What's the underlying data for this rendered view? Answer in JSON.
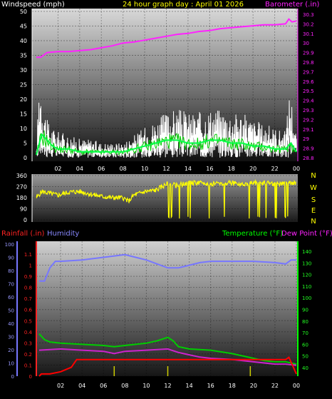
{
  "wind_panel": {
    "title_left": "Windspeed (mph)",
    "title_center": "24 hour graph day : April 01 2026",
    "title_right": "Barometer (.in)",
    "left_ticks": [
      "0",
      "5",
      "10",
      "15",
      "20",
      "25",
      "30",
      "35",
      "40",
      "45",
      "50"
    ],
    "right_ticks": [
      "28.8",
      "28.9",
      "29",
      "29.1",
      "29.2",
      "29.3",
      "29.4",
      "29.5",
      "29.6",
      "29.7",
      "29.8",
      "29.9",
      "30",
      "30.1",
      "30.2",
      "30.3"
    ],
    "x_ticks": [
      "02",
      "04",
      "06",
      "08",
      "10",
      "12",
      "14",
      "16",
      "18",
      "20",
      "22",
      "00"
    ]
  },
  "dir_panel": {
    "left_ticks": [
      "0",
      "90",
      "180",
      "270",
      "360"
    ],
    "compass": [
      "N",
      "W",
      "S",
      "E",
      "N"
    ]
  },
  "temp_panel": {
    "title_rain": "Rainfall (.in)",
    "title_humidity": "Humidity",
    "title_temp": "Temperature (°F)",
    "title_dew": "Dew Point (°F)",
    "humidity_ticks": [
      "0",
      "10",
      "20",
      "30",
      "40",
      "50",
      "60",
      "70",
      "80",
      "90",
      "100"
    ],
    "rain_ticks": [
      "0",
      "0.1",
      "0.2",
      "0.3",
      "0.4",
      "0.5",
      "0.6",
      "0.7",
      "0.8",
      "0.9",
      "1",
      "1.1"
    ],
    "temp_ticks": [
      "40",
      "50",
      "60",
      "70",
      "80",
      "90",
      "100",
      "110",
      "120",
      "130",
      "140"
    ],
    "x_ticks": [
      "02",
      "04",
      "06",
      "08",
      "10",
      "12",
      "14",
      "16",
      "18",
      "20",
      "22",
      "00"
    ]
  },
  "colors": {
    "wind_avg": "#00cc00",
    "wind_gust": "#ffffff",
    "barometer": "#ff22ff",
    "direction": "#ffff00",
    "rain": "#ff0000",
    "humidity": "#7777ff",
    "temperature": "#00cc00",
    "dewpoint": "#cc22cc"
  },
  "chart_data": [
    {
      "type": "line",
      "x_label_positions_hours": [
        2,
        4,
        6,
        8,
        10,
        12,
        14,
        16,
        18,
        20,
        22,
        24
      ],
      "ylim_left": [
        0,
        50
      ],
      "ylim_right": [
        28.8,
        30.3
      ],
      "series": [
        {
          "name": "Windspeed",
          "axis": "left",
          "x": [
            0,
            0.5,
            1,
            1.5,
            2,
            3,
            4,
            5,
            6,
            7,
            8,
            9,
            10,
            11,
            12,
            13,
            14,
            15,
            16,
            17,
            18,
            19,
            20,
            21,
            22,
            23,
            23.5,
            24
          ],
          "values": [
            1,
            8,
            6,
            4,
            3,
            3,
            2,
            2,
            2,
            2,
            2,
            3,
            4,
            5,
            6,
            6,
            5,
            5,
            6,
            6,
            5,
            5,
            4,
            4,
            3,
            3,
            5,
            2
          ]
        },
        {
          "name": "Gust",
          "axis": "left",
          "x": [
            0,
            0.3,
            0.6,
            1,
            1.5,
            2,
            3,
            4,
            5,
            6,
            7,
            8,
            9,
            10,
            11,
            12,
            13,
            14,
            15,
            16,
            17,
            18,
            19,
            20,
            21,
            22,
            23,
            23.4,
            24
          ],
          "values": [
            2,
            24,
            16,
            10,
            8,
            7,
            6,
            5,
            5,
            4,
            4,
            4,
            6,
            8,
            10,
            12,
            13,
            12,
            12,
            13,
            13,
            12,
            12,
            10,
            9,
            8,
            7,
            19,
            6
          ]
        },
        {
          "name": "Barometer",
          "axis": "right",
          "x": [
            0,
            0.4,
            1,
            2,
            3,
            4,
            5,
            6,
            7,
            8,
            9,
            10,
            11,
            12,
            13,
            14,
            15,
            16,
            17,
            18,
            19,
            20,
            21,
            22,
            23,
            23.3,
            23.6,
            24
          ],
          "values": [
            29.85,
            29.85,
            29.9,
            29.91,
            29.91,
            29.92,
            29.93,
            29.95,
            29.97,
            30.0,
            30.01,
            30.03,
            30.05,
            30.07,
            30.09,
            30.1,
            30.12,
            30.13,
            30.15,
            30.16,
            30.17,
            30.18,
            30.19,
            30.19,
            30.2,
            30.25,
            30.22,
            30.23
          ]
        }
      ]
    },
    {
      "type": "line",
      "ylim": [
        0,
        360
      ],
      "series": [
        {
          "name": "Wind Direction",
          "x": [
            0,
            0.5,
            1,
            2,
            3,
            4,
            5,
            6,
            7,
            8,
            8.5,
            9,
            10,
            11,
            12,
            13,
            14,
            15,
            16,
            17,
            18,
            19,
            20,
            21,
            22,
            23,
            24
          ],
          "values": [
            180,
            230,
            220,
            200,
            225,
            230,
            210,
            190,
            180,
            180,
            150,
            200,
            230,
            240,
            290,
            280,
            300,
            300,
            290,
            300,
            300,
            290,
            300,
            300,
            290,
            300,
            300
          ]
        }
      ]
    },
    {
      "type": "line",
      "ylim_humidity": [
        0,
        100
      ],
      "ylim_rain": [
        0,
        1.1
      ],
      "ylim_temp": [
        40,
        140
      ],
      "series": [
        {
          "name": "Humidity",
          "axis": "humidity",
          "x": [
            0,
            0.5,
            1,
            1.5,
            2,
            4,
            6,
            8,
            9,
            10,
            11,
            12,
            13,
            14,
            15,
            16,
            18,
            20,
            22,
            23,
            23.5,
            24
          ],
          "values": [
            72,
            72,
            82,
            87,
            87,
            88,
            90,
            92,
            90,
            88,
            85,
            82,
            82,
            84,
            86,
            87,
            87,
            87,
            86,
            85,
            88,
            88
          ]
        },
        {
          "name": "Temperature",
          "axis": "temp",
          "x": [
            0,
            0.5,
            1,
            2,
            4,
            6,
            7,
            8,
            10,
            11,
            12,
            12.5,
            13,
            14,
            16,
            18,
            20,
            21,
            22,
            23,
            24
          ],
          "values": [
            69,
            64,
            62,
            61,
            60,
            59,
            58,
            59,
            61,
            63,
            66,
            63,
            58,
            56,
            55,
            52,
            48,
            46,
            45,
            45,
            43
          ]
        },
        {
          "name": "Dew Point",
          "axis": "temp",
          "x": [
            0,
            2,
            4,
            6,
            7,
            8,
            10,
            12,
            13,
            14,
            15,
            16,
            18,
            20,
            22,
            23,
            24
          ],
          "values": [
            55,
            56,
            55,
            54,
            52,
            54,
            55,
            56,
            53,
            51,
            49,
            48,
            47,
            45,
            43,
            43,
            42
          ]
        },
        {
          "name": "Rainfall",
          "axis": "rain",
          "x": [
            0,
            0.2,
            1,
            2,
            3,
            3.5,
            5,
            8,
            12,
            16,
            20,
            23,
            23.3,
            24
          ],
          "values": [
            0,
            0.02,
            0.02,
            0.04,
            0.08,
            0.15,
            0.15,
            0.15,
            0.15,
            0.15,
            0.15,
            0.15,
            0.17,
            0.02
          ]
        }
      ]
    }
  ]
}
